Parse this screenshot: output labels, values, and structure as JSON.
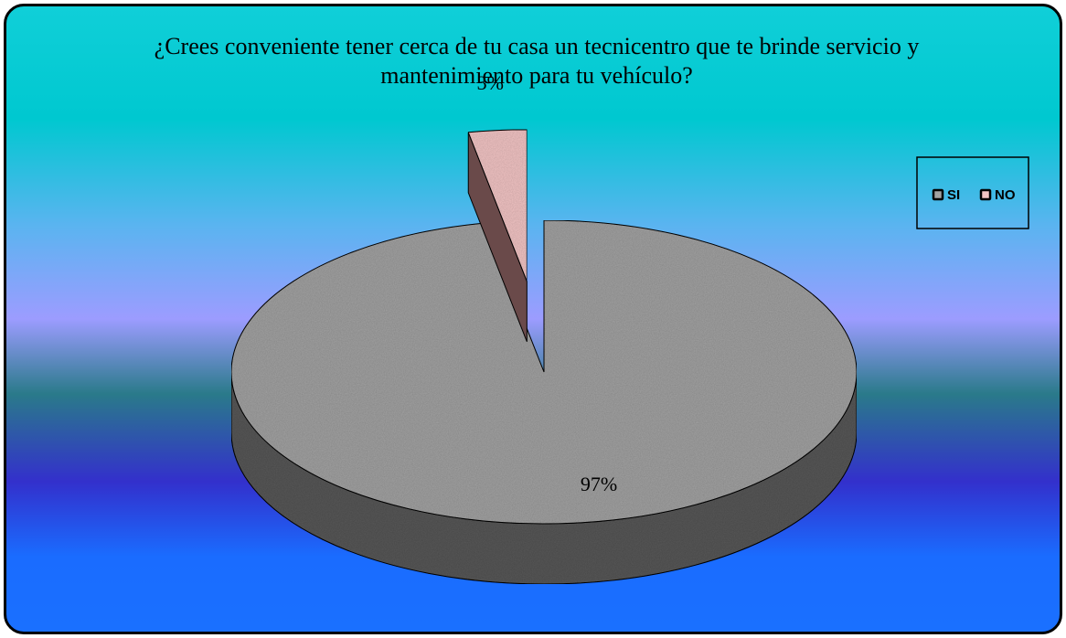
{
  "chart_data": {
    "type": "pie3d",
    "title": "¿Crees conveniente tener cerca de tu casa un tecnicentro que te brinde servicio y mantenimiento para tu vehículo?",
    "categories": [
      "SI",
      "NO"
    ],
    "values": [
      97,
      3
    ],
    "value_labels": [
      "97%",
      "3%"
    ],
    "colors": [
      "#a2a2a2",
      "#f2c4c4"
    ],
    "legend": "right"
  }
}
